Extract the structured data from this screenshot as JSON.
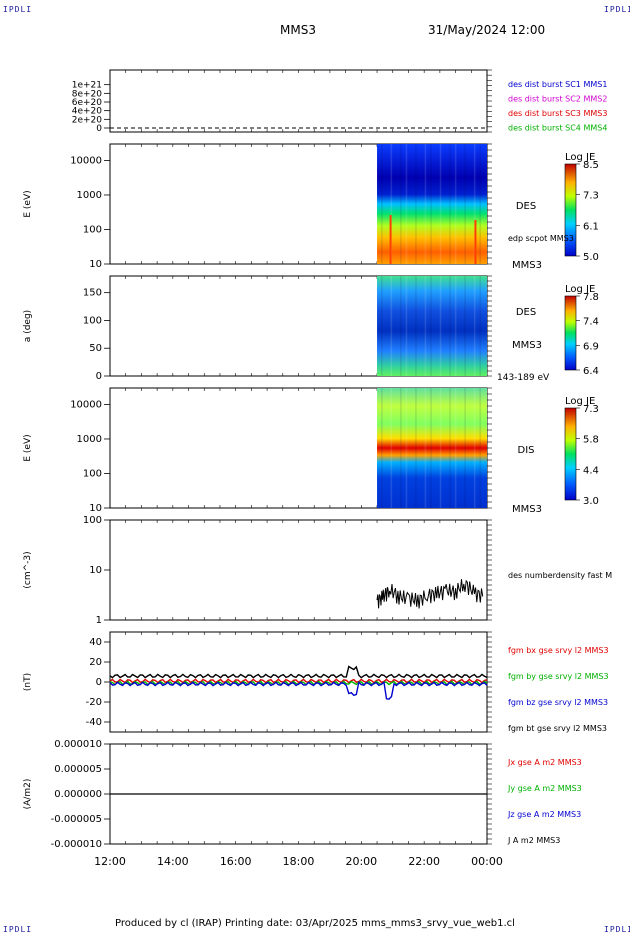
{
  "corners": {
    "tl": "IPDLI",
    "tr": "IPDLI",
    "bl": "IPDLI",
    "br": "IPDLI"
  },
  "header": {
    "spacecraft": "MMS3",
    "datetime": "31/May/2024 12:00"
  },
  "footer": "Produced by cl (IRAP)   Printing date: 03/Apr/2025   mms_mms3_srvy_vue_web1.cl",
  "xaxis": {
    "ticks": [
      "12:00",
      "14:00",
      "16:00",
      "18:00",
      "20:00",
      "22:00",
      "00:00"
    ]
  },
  "colors": {
    "red": "#e00000",
    "green": "#00b000",
    "blue": "#0000d0",
    "magenta": "#d000d0",
    "black": "#000000"
  },
  "chart_data": [
    {
      "type": "line",
      "panel": "dist_burst",
      "ylim": [
        0,
        1.2e+21
      ],
      "ytick_labels": [
        "0",
        "2e+20",
        "4e+20",
        "6e+20",
        "8e+20",
        "1e+21"
      ],
      "legend": [
        "des dist burst SC1 MMS1",
        "des dist burst SC2 MMS2",
        "des dist burst SC3 MMS3",
        "des dist burst SC4 MMS4"
      ],
      "legend_colors": [
        "#0000d0",
        "#d000d0",
        "#e00000",
        "#00b000"
      ]
    },
    {
      "type": "heatmap",
      "panel": "des_energy",
      "ylabel": "E (eV)",
      "yscale": "log",
      "ylim": [
        10,
        30000
      ],
      "ytick_labels": [
        "10",
        "100",
        "1000",
        "10000"
      ],
      "side_labels": [
        "DES",
        "edp scpot MMS3",
        "MMS3"
      ],
      "colorbar": {
        "title": "Log JE",
        "ticks": [
          "5.0",
          "6.1",
          "7.3",
          "8.5"
        ]
      },
      "data_start": "20:30",
      "data_end": "00:00"
    },
    {
      "type": "heatmap",
      "panel": "des_pitch",
      "ylabel": "a (deg)",
      "ylim": [
        0,
        180
      ],
      "ytick_labels": [
        "0",
        "50",
        "100",
        "150"
      ],
      "side_labels": [
        "DES",
        "MMS3",
        "143-189 eV"
      ],
      "colorbar": {
        "title": "Log JE",
        "ticks": [
          "6.4",
          "6.9",
          "7.4",
          "7.8"
        ]
      }
    },
    {
      "type": "heatmap",
      "panel": "dis_energy",
      "ylabel": "E (eV)",
      "yscale": "log",
      "ylim": [
        10,
        30000
      ],
      "ytick_labels": [
        "10",
        "100",
        "1000",
        "10000"
      ],
      "side_labels": [
        "DIS",
        "MMS3"
      ],
      "colorbar": {
        "title": "Log JE",
        "ticks": [
          "3.0",
          "4.4",
          "5.8",
          "7.3"
        ]
      }
    },
    {
      "type": "line",
      "panel": "density",
      "ylabel": "(cm^-3)",
      "yscale": "log",
      "ylim": [
        1,
        100
      ],
      "ytick_labels": [
        "1",
        "10",
        "100"
      ],
      "legend": [
        "des numberdensity fast M"
      ],
      "series": [
        {
          "time_hours": [
            20.5,
            20.7,
            20.9,
            21.2,
            21.5,
            21.8,
            22.1,
            22.4,
            22.7,
            23.0,
            23.3,
            23.6,
            23.9
          ],
          "values": [
            2.5,
            3.0,
            4.2,
            3.0,
            2.8,
            2.5,
            3.2,
            3.5,
            4.0,
            3.8,
            5.5,
            3.5,
            3.2
          ]
        }
      ]
    },
    {
      "type": "line",
      "panel": "fgm",
      "ylabel": "(nT)",
      "ylim": [
        -50,
        50
      ],
      "ytick_labels": [
        "-40",
        "-20",
        "0",
        "20",
        "40"
      ],
      "legend": [
        "fgm bx gse srvy l2 MMS3",
        "fgm by gse srvy l2 MMS3",
        "fgm bz gse srvy l2 MMS3",
        "fgm bt gse srvy l2 MMS3"
      ],
      "legend_colors": [
        "#e00000",
        "#00b000",
        "#0000d0",
        "#000000"
      ],
      "series_levels": [
        {
          "name": "bx",
          "mean": 1
        },
        {
          "name": "by",
          "mean": -1
        },
        {
          "name": "bz",
          "mean": -2
        },
        {
          "name": "bt",
          "mean": 6
        }
      ]
    },
    {
      "type": "line",
      "panel": "current",
      "ylabel": "(A/m2)",
      "ylim": [
        -1e-05,
        1e-05
      ],
      "ytick_labels": [
        "-0.000010",
        "-0.000005",
        "0.000000",
        "0.000005",
        "0.000010"
      ],
      "legend": [
        "Jx gse A m2 MMS3",
        "Jy gse A m2 MMS3",
        "Jz gse A m2 MMS3",
        "J A m2 MMS3"
      ],
      "legend_colors": [
        "#e00000",
        "#00b000",
        "#0000d0",
        "#000000"
      ]
    }
  ]
}
